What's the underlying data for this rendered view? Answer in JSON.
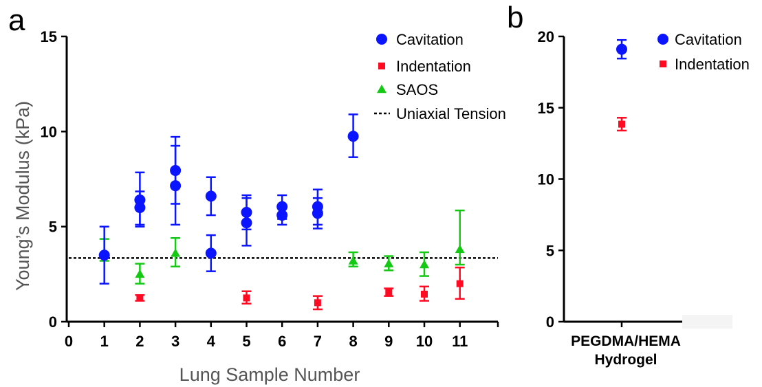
{
  "panels": {
    "a": "a",
    "b": "b"
  },
  "chart_data": [
    {
      "panel": "a",
      "type": "scatter",
      "xlabel": "Lung Sample Number",
      "ylabel": "Young’s Modulus (kPa)",
      "xlim": [
        0,
        12
      ],
      "ylim": [
        0,
        15
      ],
      "xticks": [
        "0",
        "1",
        "2",
        "3",
        "4",
        "5",
        "6",
        "7",
        "8",
        "9",
        "10",
        "11"
      ],
      "yticks": [
        0,
        5,
        10,
        15
      ],
      "reference_line": {
        "name": "Uniaxial Tension",
        "y": 3.35,
        "style": "dotted",
        "color": "#000000"
      },
      "legend": {
        "placement": "top-right",
        "entries": [
          "Cavitation",
          "Indentation",
          "SAOS",
          "Uniaxial Tension"
        ]
      },
      "series": [
        {
          "name": "Cavitation",
          "marker": "circle",
          "color": "#0a14ff",
          "points": [
            {
              "x": 1,
              "y": 3.5,
              "lo": 2.0,
              "hi": 5.0
            },
            {
              "x": 2,
              "y": 6.4,
              "lo": 5.0,
              "hi": 7.85
            },
            {
              "x": 2,
              "y": 6.0,
              "lo": 5.1,
              "hi": 6.85
            },
            {
              "x": 3,
              "y": 7.95,
              "lo": 6.2,
              "hi": 9.72
            },
            {
              "x": 3,
              "y": 7.15,
              "lo": 5.1,
              "hi": 9.25
            },
            {
              "x": 4,
              "y": 6.6,
              "lo": 5.6,
              "hi": 7.6
            },
            {
              "x": 4,
              "y": 3.6,
              "lo": 2.65,
              "hi": 4.55
            },
            {
              "x": 5,
              "y": 5.75,
              "lo": 4.85,
              "hi": 6.65
            },
            {
              "x": 5,
              "y": 5.2,
              "lo": 4.0,
              "hi": 6.5
            },
            {
              "x": 6,
              "y": 6.05,
              "lo": 5.4,
              "hi": 6.65
            },
            {
              "x": 6,
              "y": 5.6,
              "lo": 5.1,
              "hi": 6.1
            },
            {
              "x": 7,
              "y": 6.05,
              "lo": 5.1,
              "hi": 6.95
            },
            {
              "x": 7,
              "y": 5.7,
              "lo": 4.9,
              "hi": 6.5
            },
            {
              "x": 8,
              "y": 9.75,
              "lo": 8.65,
              "hi": 10.9
            }
          ]
        },
        {
          "name": "Indentation",
          "marker": "square",
          "color": "#ff0a22",
          "points": [
            {
              "x": 2,
              "y": 1.25,
              "lo": 1.1,
              "hi": 1.4
            },
            {
              "x": 5,
              "y": 1.25,
              "lo": 0.95,
              "hi": 1.6
            },
            {
              "x": 7,
              "y": 1.0,
              "lo": 0.65,
              "hi": 1.35
            },
            {
              "x": 9,
              "y": 1.55,
              "lo": 1.35,
              "hi": 1.75
            },
            {
              "x": 10,
              "y": 1.45,
              "lo": 1.1,
              "hi": 1.85
            },
            {
              "x": 11,
              "y": 2.0,
              "lo": 1.2,
              "hi": 2.85
            }
          ]
        },
        {
          "name": "SAOS",
          "marker": "triangle",
          "color": "#14c814",
          "points": [
            {
              "x": 1,
              "y": 3.6,
              "lo": 3.2,
              "hi": 4.35
            },
            {
              "x": 2,
              "y": 2.5,
              "lo": 2.0,
              "hi": 3.05
            },
            {
              "x": 3,
              "y": 3.6,
              "lo": 2.9,
              "hi": 4.4
            },
            {
              "x": 8,
              "y": 3.2,
              "lo": 2.9,
              "hi": 3.65
            },
            {
              "x": 9,
              "y": 3.05,
              "lo": 2.7,
              "hi": 3.45
            },
            {
              "x": 10,
              "y": 3.0,
              "lo": 2.4,
              "hi": 3.65
            },
            {
              "x": 11,
              "y": 3.8,
              "lo": 3.0,
              "hi": 5.85
            }
          ]
        }
      ]
    },
    {
      "panel": "b",
      "type": "scatter",
      "categories": [
        "PEGDMA/HEMA",
        "Hydrogel"
      ],
      "ylim": [
        0,
        20
      ],
      "yticks": [
        0,
        5,
        10,
        15,
        20
      ],
      "legend": {
        "placement": "top-right",
        "entries": [
          "Cavitation",
          "Indentation"
        ]
      },
      "series": [
        {
          "name": "Cavitation",
          "marker": "circle",
          "color": "#0a14ff",
          "points": [
            {
              "y": 19.1,
              "lo": 18.45,
              "hi": 19.75
            }
          ]
        },
        {
          "name": "Indentation",
          "marker": "square",
          "color": "#ff0a22",
          "points": [
            {
              "y": 13.85,
              "lo": 13.4,
              "hi": 14.3
            }
          ]
        }
      ]
    }
  ]
}
